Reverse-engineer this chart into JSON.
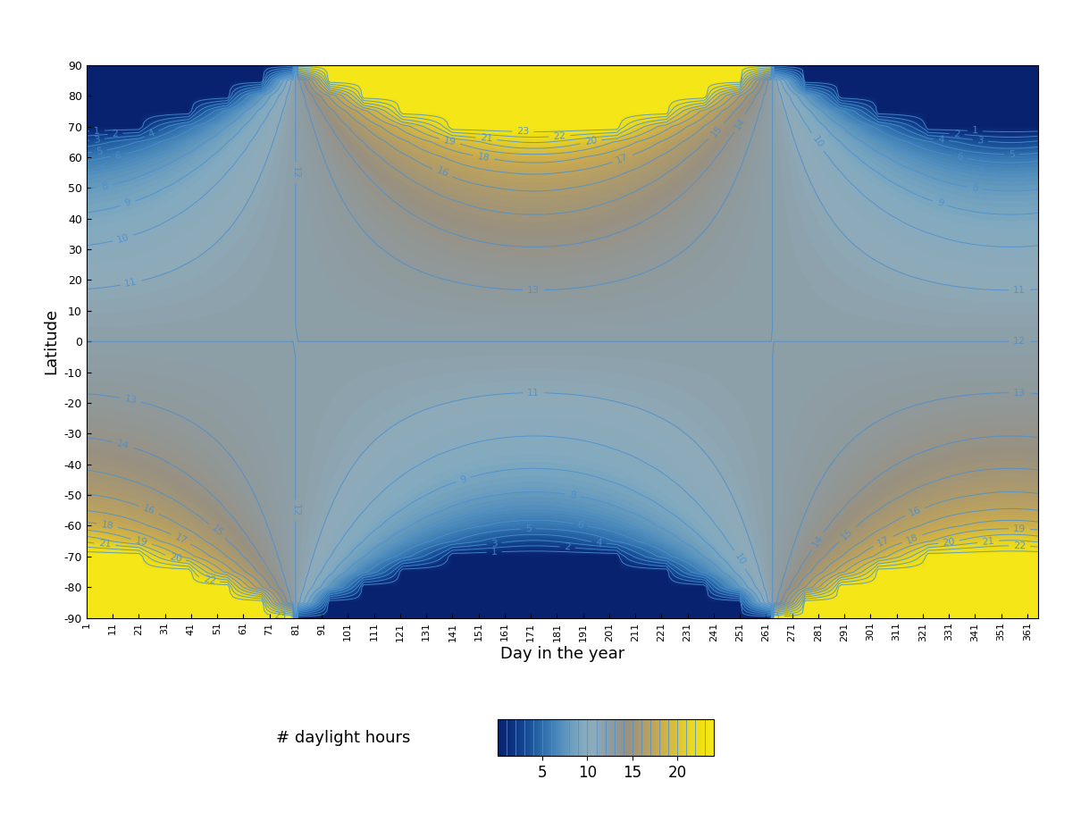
{
  "xlabel": "Day in the year",
  "ylabel": "Latitude",
  "colorbar_label": "# daylight hours",
  "lat_min": -90,
  "lat_max": 90,
  "lat_step": 5,
  "day_min": 1,
  "day_max": 365,
  "contour_levels": [
    1,
    2,
    3,
    4,
    5,
    6,
    7,
    8,
    9,
    10,
    11,
    12,
    13,
    14,
    15,
    16,
    17,
    18,
    19,
    20,
    21,
    22,
    23
  ],
  "vmin": 0,
  "vmax": 24,
  "contour_color": "#4a90d0",
  "contour_linewidth": 0.7,
  "contour_label_fontsize": 8,
  "cmap_colors": [
    [
      0.0,
      "#08216e"
    ],
    [
      0.05,
      "#0b2d7a"
    ],
    [
      0.1,
      "#103d8a"
    ],
    [
      0.15,
      "#1a5298"
    ],
    [
      0.2,
      "#2a68a8"
    ],
    [
      0.25,
      "#3d7db5"
    ],
    [
      0.3,
      "#5590bc"
    ],
    [
      0.35,
      "#6fa0bf"
    ],
    [
      0.4,
      "#84aabf"
    ],
    [
      0.45,
      "#8eaab8"
    ],
    [
      0.5,
      "#8c9fa8"
    ],
    [
      0.55,
      "#909898"
    ],
    [
      0.6,
      "#989080"
    ],
    [
      0.65,
      "#a89870"
    ],
    [
      0.7,
      "#b8a060"
    ],
    [
      0.75,
      "#c8aa50"
    ],
    [
      0.8,
      "#d4b840"
    ],
    [
      0.85,
      "#e0c830"
    ],
    [
      0.9,
      "#ead820"
    ],
    [
      0.95,
      "#f0e010"
    ],
    [
      1.0,
      "#f5e818"
    ]
  ],
  "colorbar_ticks": [
    5,
    10,
    15,
    20
  ],
  "xtick_start": 1,
  "xtick_step": 10,
  "xtick_end": 361,
  "ytick_step": 10
}
